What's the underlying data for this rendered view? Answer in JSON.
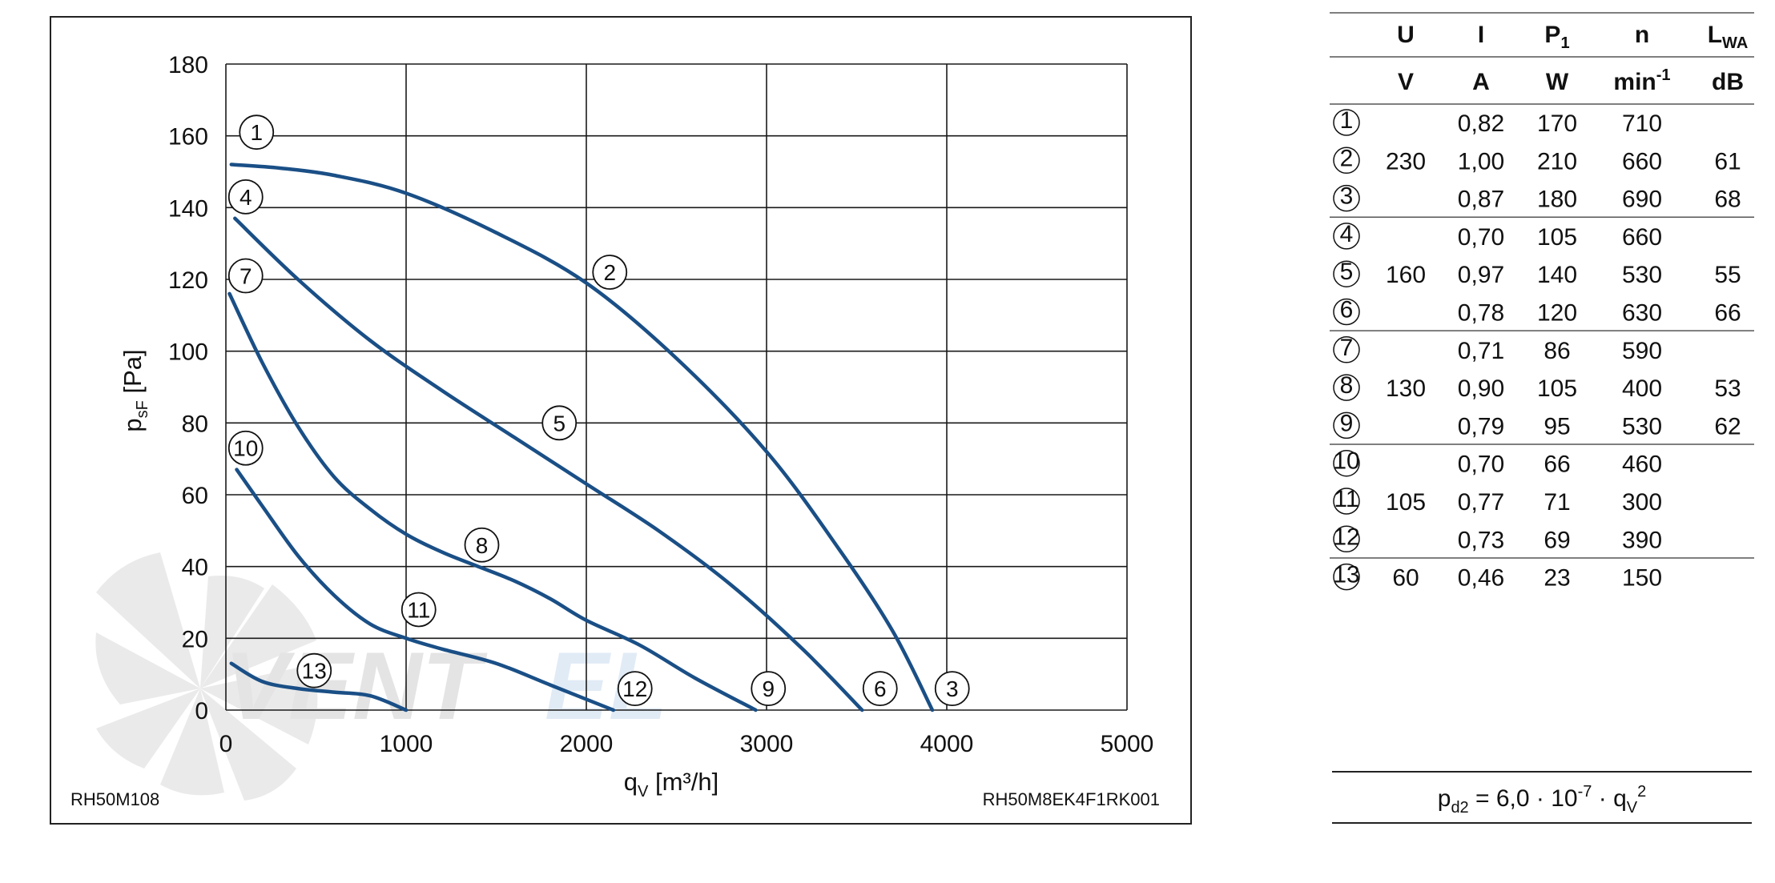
{
  "chart_data": {
    "type": "line",
    "xlabel_main": "q",
    "xlabel_sub": "V",
    "xlabel_unit": " [m³/h]",
    "ylabel_main": "p",
    "ylabel_sub": "sF",
    "ylabel_unit": " [Pa]",
    "xlim": [
      0,
      5000
    ],
    "ylim": [
      0,
      180
    ],
    "xticks": [
      "0",
      "1000",
      "2000",
      "3000",
      "4000",
      "5000"
    ],
    "yticks": [
      "0",
      "20",
      "40",
      "60",
      "80",
      "100",
      "120",
      "140",
      "160",
      "180"
    ],
    "grid": true,
    "line_color": "#1a4f86",
    "series": [
      {
        "points": [
          [
            30,
            152
          ],
          [
            300,
            151
          ],
          [
            600,
            149
          ],
          [
            1000,
            144
          ],
          [
            1500,
            133
          ],
          [
            2000,
            119
          ],
          [
            2500,
            98
          ],
          [
            3000,
            72
          ],
          [
            3400,
            45
          ],
          [
            3700,
            22
          ],
          [
            3920,
            0
          ]
        ]
      },
      {
        "points": [
          [
            50,
            137
          ],
          [
            400,
            120
          ],
          [
            800,
            103
          ],
          [
            1200,
            89
          ],
          [
            1600,
            76
          ],
          [
            2000,
            63
          ],
          [
            2400,
            50
          ],
          [
            2800,
            35
          ],
          [
            3200,
            17
          ],
          [
            3530,
            0
          ]
        ]
      },
      {
        "points": [
          [
            20,
            116
          ],
          [
            200,
            97
          ],
          [
            400,
            79
          ],
          [
            600,
            65
          ],
          [
            800,
            56
          ],
          [
            1000,
            49
          ],
          [
            1200,
            44
          ],
          [
            1400,
            40
          ],
          [
            1600,
            36
          ],
          [
            1800,
            31
          ],
          [
            2000,
            25
          ],
          [
            2300,
            18
          ],
          [
            2600,
            9
          ],
          [
            2940,
            0
          ]
        ]
      },
      {
        "points": [
          [
            60,
            67
          ],
          [
            200,
            57
          ],
          [
            400,
            43
          ],
          [
            600,
            32
          ],
          [
            800,
            24
          ],
          [
            1000,
            20
          ],
          [
            1200,
            17
          ],
          [
            1500,
            13
          ],
          [
            1800,
            7
          ],
          [
            2150,
            0
          ]
        ]
      },
      {
        "points": [
          [
            30,
            13
          ],
          [
            200,
            8
          ],
          [
            400,
            6
          ],
          [
            600,
            5
          ],
          [
            800,
            4
          ],
          [
            1000,
            0
          ]
        ]
      }
    ],
    "markers": [
      {
        "label": "1",
        "x": 170,
        "y": 161
      },
      {
        "label": "4",
        "x": 110,
        "y": 143
      },
      {
        "label": "7",
        "x": 110,
        "y": 121
      },
      {
        "label": "10",
        "x": 110,
        "y": 73
      },
      {
        "label": "2",
        "x": 2130,
        "y": 122
      },
      {
        "label": "5",
        "x": 1850,
        "y": 80
      },
      {
        "label": "8",
        "x": 1420,
        "y": 46
      },
      {
        "label": "11",
        "x": 1070,
        "y": 28
      },
      {
        "label": "13",
        "x": 490,
        "y": 11
      },
      {
        "label": "12",
        "x": 2270,
        "y": 6
      },
      {
        "label": "9",
        "x": 3010,
        "y": 6
      },
      {
        "label": "6",
        "x": 3630,
        "y": 6
      },
      {
        "label": "3",
        "x": 4030,
        "y": 6
      }
    ],
    "model_left": "RH50M108",
    "model_right": "RH50M8EK4F1RK001"
  },
  "table": {
    "headers": [
      "U",
      "I",
      "P",
      "n",
      "L"
    ],
    "header_subs": [
      "",
      "",
      "1",
      "",
      "WA"
    ],
    "units": [
      "V",
      "A",
      "W",
      "min",
      "dB"
    ],
    "unit_sups": [
      "",
      "",
      "",
      "-1",
      ""
    ],
    "rows": [
      {
        "id": "1",
        "I": "0,82",
        "P": "170",
        "n": "710",
        "L": ""
      },
      {
        "id": "2",
        "I": "1,00",
        "P": "210",
        "n": "660",
        "L": "61"
      },
      {
        "id": "3",
        "I": "0,87",
        "P": "180",
        "n": "690",
        "L": "68"
      },
      {
        "id": "4",
        "I": "0,70",
        "P": "105",
        "n": "660",
        "L": ""
      },
      {
        "id": "5",
        "I": "0,97",
        "P": "140",
        "n": "530",
        "L": "55"
      },
      {
        "id": "6",
        "I": "0,78",
        "P": "120",
        "n": "630",
        "L": "66"
      },
      {
        "id": "7",
        "I": "0,71",
        "P": "86",
        "n": "590",
        "L": ""
      },
      {
        "id": "8",
        "I": "0,90",
        "P": "105",
        "n": "400",
        "L": "53"
      },
      {
        "id": "9",
        "I": "0,79",
        "P": "95",
        "n": "530",
        "L": "62"
      },
      {
        "id": "10",
        "I": "0,70",
        "P": "66",
        "n": "460",
        "L": ""
      },
      {
        "id": "11",
        "I": "0,77",
        "P": "71",
        "n": "300",
        "L": ""
      },
      {
        "id": "12",
        "I": "0,73",
        "P": "69",
        "n": "390",
        "L": ""
      },
      {
        "id": "13",
        "I": "0,46",
        "P": "23",
        "n": "150",
        "L": ""
      }
    ],
    "voltage_groups": [
      {
        "U": "230",
        "rows": [
          0,
          1,
          2
        ]
      },
      {
        "U": "160",
        "rows": [
          3,
          4,
          5
        ]
      },
      {
        "U": "130",
        "rows": [
          6,
          7,
          8
        ]
      },
      {
        "U": "105",
        "rows": [
          9,
          10,
          11
        ]
      },
      {
        "U": "60",
        "rows": [
          12
        ]
      }
    ]
  },
  "formula": {
    "lhs": "p",
    "lhs_sub": "d2",
    "mid": " = 6,0 · 10",
    "exp": "-7",
    "dot": " · q",
    "q_sub": "V",
    "q_sup": "2"
  },
  "watermark": {
    "text": "VENTEL"
  }
}
